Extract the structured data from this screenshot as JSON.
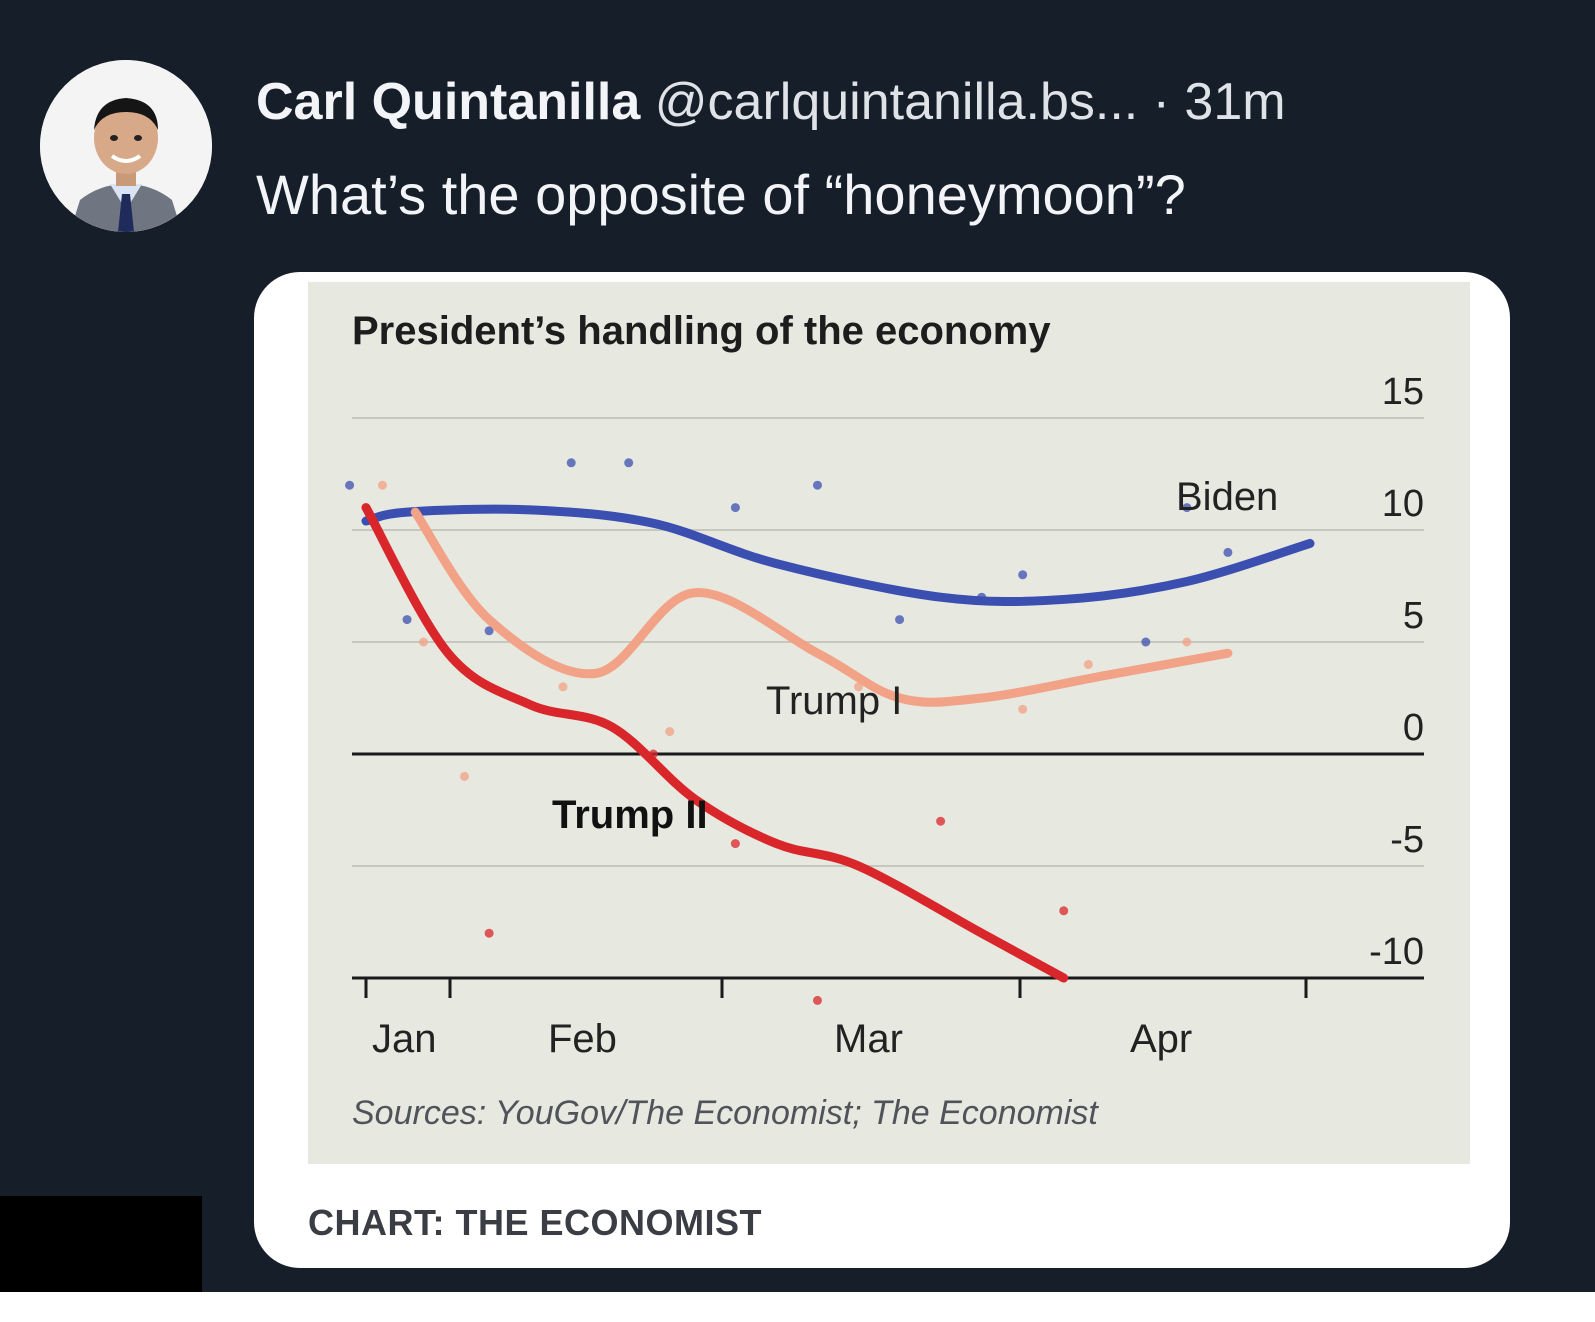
{
  "post": {
    "author_name": "Carl Quintanilla",
    "author_handle": "@carlquintanilla.bs...",
    "time": "· 31m",
    "text": "What’s the opposite of “honeymoon”?"
  },
  "card": {
    "footer": "CHART: THE ECONOMIST"
  },
  "chart_data": {
    "type": "line",
    "title": "President’s handling of the economy",
    "source": "Sources: YouGov/The Economist; The Economist",
    "xlabel": "",
    "ylabel": "",
    "x_tick_labels": [
      "Jan",
      "Feb",
      "Mar",
      "Apr"
    ],
    "y_tick_labels": [
      "15",
      "10",
      "5",
      "0",
      "-5",
      "-10"
    ],
    "ylim": [
      -10,
      15
    ],
    "grid": true,
    "series": [
      {
        "name": "Biden",
        "color": "#3b4fb0",
        "points": [
          [
            0,
            10.4
          ],
          [
            5,
            10.8
          ],
          [
            20,
            10.9
          ],
          [
            35,
            10.3
          ],
          [
            50,
            8.5
          ],
          [
            70,
            7.0
          ],
          [
            85,
            6.9
          ],
          [
            100,
            7.7
          ],
          [
            115,
            9.4
          ]
        ],
        "dots": [
          [
            -2,
            12
          ],
          [
            25,
            13
          ],
          [
            32,
            13
          ],
          [
            45,
            11
          ],
          [
            55,
            12
          ],
          [
            75,
            7
          ],
          [
            100,
            11
          ],
          [
            105,
            9
          ],
          [
            80,
            8
          ],
          [
            15,
            5.5
          ],
          [
            5,
            6
          ],
          [
            65,
            6
          ],
          [
            95,
            5
          ]
        ]
      },
      {
        "name": "Trump I",
        "color": "#f2a286",
        "points": [
          [
            6,
            10.8
          ],
          [
            15,
            6.0
          ],
          [
            28,
            3.6
          ],
          [
            40,
            7.2
          ],
          [
            55,
            4.5
          ],
          [
            65,
            2.5
          ],
          [
            75,
            2.5
          ],
          [
            90,
            3.5
          ],
          [
            105,
            4.5
          ]
        ],
        "dots": [
          [
            2,
            12
          ],
          [
            7,
            5
          ],
          [
            12,
            -1
          ],
          [
            24,
            3
          ],
          [
            37,
            1
          ],
          [
            60,
            3
          ],
          [
            88,
            4
          ],
          [
            100,
            5
          ],
          [
            80,
            2
          ]
        ]
      },
      {
        "name": "Trump II",
        "color": "#d9262b",
        "points": [
          [
            0,
            11
          ],
          [
            10,
            4.5
          ],
          [
            20,
            2.2
          ],
          [
            30,
            1.2
          ],
          [
            40,
            -2.0
          ],
          [
            50,
            -4.0
          ],
          [
            60,
            -5.0
          ],
          [
            75,
            -8.0
          ],
          [
            85,
            -10.0
          ]
        ],
        "dots": [
          [
            45,
            -4
          ],
          [
            70,
            -3
          ],
          [
            85,
            -7
          ],
          [
            15,
            -8
          ],
          [
            55,
            -11
          ],
          [
            35,
            0
          ]
        ]
      }
    ],
    "series_labels": [
      {
        "name": "Biden"
      },
      {
        "name": "Trump I"
      },
      {
        "name": "Trump II"
      }
    ]
  }
}
